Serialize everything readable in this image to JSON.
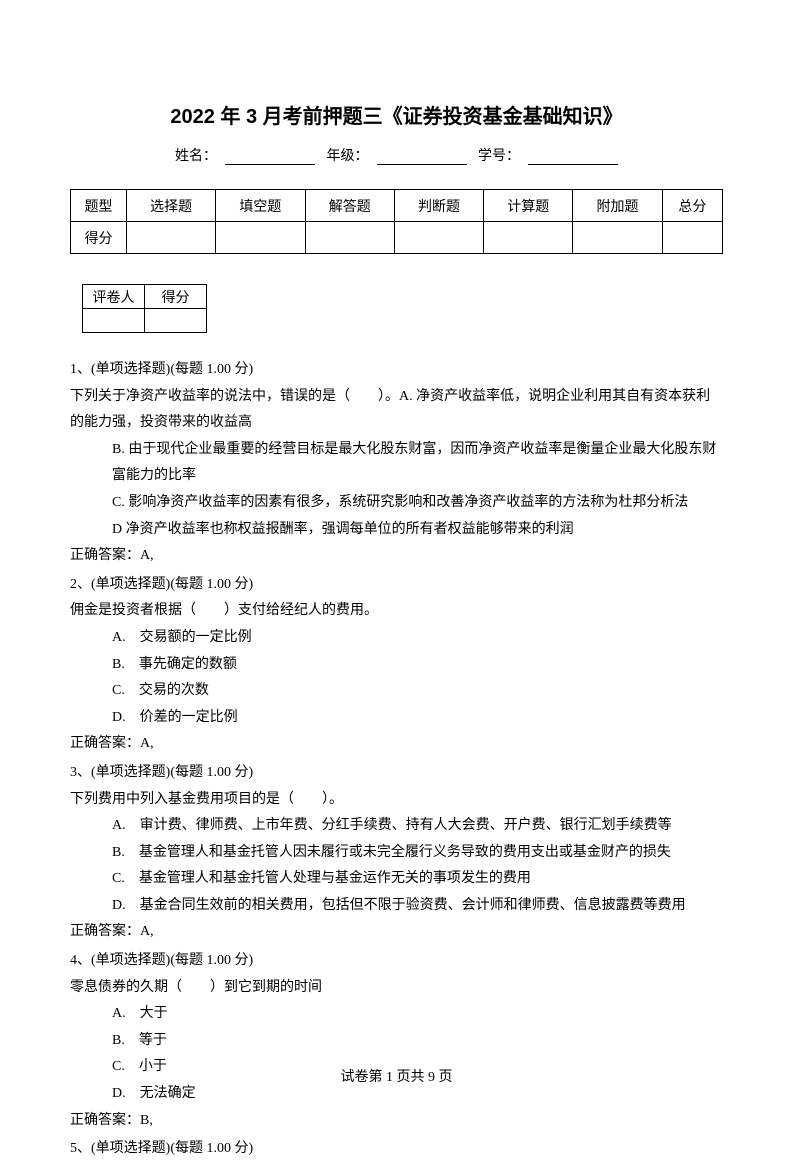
{
  "title": "2022 年 3 月考前押题三《证券投资基金基础知识》",
  "info": {
    "name_label": "姓名：",
    "grade_label": "年级：",
    "id_label": "学号："
  },
  "type_table": {
    "row1": [
      "题型",
      "选择题",
      "填空题",
      "解答题",
      "判断题",
      "计算题",
      "附加题",
      "总分"
    ],
    "row2_label": "得分"
  },
  "grader": {
    "c1": "评卷人",
    "c2": "得分"
  },
  "questions": [
    {
      "num": "1、(单项选择题)(每题 1.00 分)",
      "stem": "下列关于净资产收益率的说法中，错误的是（　　）。A. 净资产收益率低，说明企业利用其自有资本获利的能力强，投资带来的收益高",
      "opts": [
        "B. 由于现代企业最重要的经营目标是最大化股东财富，因而净资产收益率是衡量企业最大化股东财富能力的比率",
        "C. 影响净资产收益率的因素有很多，系统研究影响和改善净资产收益率的方法称为杜邦分析法",
        "D 净资产收益率也称权益报酬率，强调每单位的所有者权益能够带来的利润"
      ],
      "opt_b_cont": "",
      "answer": "正确答案：A,"
    },
    {
      "num": "2、(单项选择题)(每题 1.00 分)",
      "stem": "佣金是投资者根据（　　）支付给经纪人的费用。",
      "opts": [
        "A.　交易额的一定比例",
        "B.　事先确定的数额",
        "C.　交易的次数",
        "D.　价差的一定比例"
      ],
      "answer": "正确答案：A,"
    },
    {
      "num": "3、(单项选择题)(每题 1.00 分)",
      "stem": "下列费用中列入基金费用项目的是（　　）。",
      "opts": [
        "A.　审计费、律师费、上市年费、分红手续费、持有人大会费、开户费、银行汇划手续费等",
        "B.　基金管理人和基金托管人因未履行或未完全履行义务导致的费用支出或基金财产的损失",
        "C.　基金管理人和基金托管人处理与基金运作无关的事项发生的费用",
        "D.　基金合同生效前的相关费用，包括但不限于验资费、会计师和律师费、信息披露费等费用"
      ],
      "answer": "正确答案：A,"
    },
    {
      "num": "4、(单项选择题)(每题 1.00 分)",
      "stem": "零息债券的久期（　　）到它到期的时间",
      "opts": [
        "A.　大于",
        "B.　等于",
        "C.　小于",
        "D.　无法确定"
      ],
      "answer": "正确答案：B,"
    },
    {
      "num": "5、(单项选择题)(每题 1.00 分)",
      "stem": "",
      "opts": [],
      "answer": ""
    }
  ],
  "footer": "试卷第 1 页共 9 页"
}
